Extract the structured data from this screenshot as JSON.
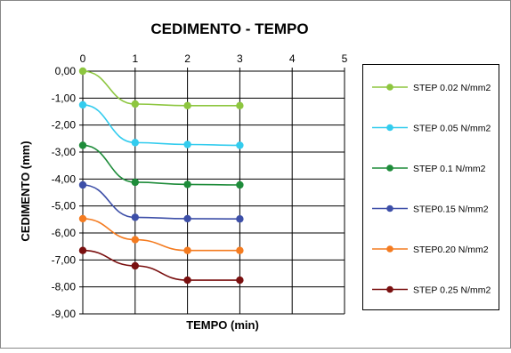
{
  "chart_data": {
    "type": "line",
    "title": "CEDIMENTO - TEMPO",
    "xlabel": "TEMPO (min)",
    "ylabel": "CEDIMENTO (mm)",
    "xlim": [
      0,
      5
    ],
    "ylim": [
      -9,
      0
    ],
    "x_ticks": [
      "0",
      "1",
      "2",
      "3",
      "4",
      "5"
    ],
    "y_ticks": [
      "0,00",
      "-1,00",
      "-2,00",
      "-3,00",
      "-4,00",
      "-5,00",
      "-6,00",
      "-7,00",
      "-8,00",
      "-9,00"
    ],
    "x_axis_position": "top",
    "grid": true,
    "legend_position": "right",
    "x": [
      0,
      1,
      2,
      3
    ],
    "series": [
      {
        "name": "STEP 0.02 N/mm2",
        "color": "#8dc63f",
        "values": [
          0.0,
          -1.22,
          -1.28,
          -1.28
        ]
      },
      {
        "name": "STEP 0.05 N/mm2",
        "color": "#33ccee",
        "values": [
          -1.25,
          -2.65,
          -2.72,
          -2.75
        ]
      },
      {
        "name": "STEP 0.1 N/mm2",
        "color": "#1e8c3a",
        "values": [
          -2.75,
          -4.12,
          -4.2,
          -4.22
        ]
      },
      {
        "name": "STEP0.15 N/mm2",
        "color": "#3d4fa8",
        "values": [
          -4.22,
          -5.42,
          -5.47,
          -5.48
        ]
      },
      {
        "name": "STEP0.20 N/mm2",
        "color": "#f47b20",
        "values": [
          -5.47,
          -6.25,
          -6.65,
          -6.65
        ]
      },
      {
        "name": "STEP 0.25 N/mm2",
        "color": "#7a1010",
        "values": [
          -6.65,
          -7.22,
          -7.75,
          -7.75
        ]
      }
    ]
  }
}
